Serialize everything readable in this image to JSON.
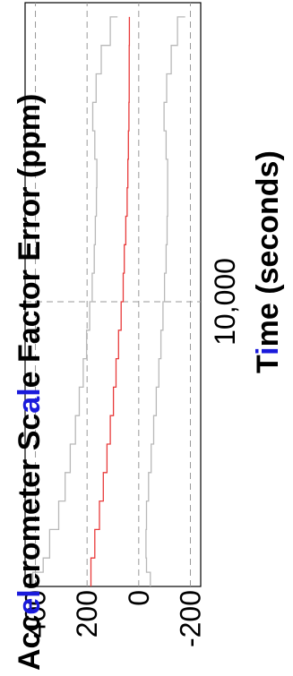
{
  "chart_data": {
    "type": "line",
    "title": "",
    "ylabel": {
      "segments": [
        {
          "text": "Acc",
          "highlight": false
        },
        {
          "text": "el",
          "highlight": true
        },
        {
          "text": "erometer Sc",
          "highlight": false
        },
        {
          "text": "al",
          "highlight": true
        },
        {
          "text": "e Factor Error (ppm)",
          "highlight": false
        }
      ]
    },
    "xlabel": {
      "segments": [
        {
          "text": "T",
          "highlight": false
        },
        {
          "text": "i",
          "highlight": true
        },
        {
          "text": "me (seconds)",
          "highlight": false
        }
      ]
    },
    "x_ticks": [
      {
        "value": 10000,
        "label": "10,000"
      }
    ],
    "y_ticks": [
      {
        "value": 400,
        "label": "400"
      },
      {
        "value": 200,
        "label": "200"
      },
      {
        "value": 0,
        "label": "0"
      },
      {
        "value": -200,
        "label": "-200"
      }
    ],
    "xlim": [
      0,
      20500
    ],
    "ylim": [
      -240,
      440
    ],
    "grid": true,
    "highlight_color": "#1a1adb",
    "series": [
      {
        "color": "#e83a3a",
        "x": [
          0,
          1000,
          2000,
          3000,
          4000,
          5000,
          6000,
          7000,
          8000,
          9000,
          10000,
          11000,
          12000,
          13000,
          14000,
          15000,
          16000,
          17000,
          18000,
          19000,
          20000
        ],
        "values": [
          185,
          170,
          152,
          137,
          123,
          110,
          98,
          88,
          78,
          68,
          60,
          56,
          50,
          45,
          42,
          40,
          38,
          37,
          37,
          36,
          36
        ]
      },
      {
        "color": "#b8b8b8",
        "x": [
          0,
          500,
          1000,
          2000,
          3000,
          4000,
          5000,
          6000,
          7000,
          8000,
          9000,
          10000,
          11000,
          12000,
          13000,
          14000,
          15000,
          16000,
          17000,
          18000,
          19000,
          20000
        ],
        "values": [
          410,
          370,
          345,
          310,
          285,
          265,
          245,
          230,
          215,
          202,
          190,
          180,
          172,
          168,
          164,
          162,
          170,
          178,
          165,
          145,
          110,
          82
        ]
      },
      {
        "color": "#b8b8b8",
        "x": [
          0,
          500,
          1000,
          2000,
          3000,
          4000,
          5000,
          6000,
          7000,
          8000,
          9000,
          10000,
          11000,
          12000,
          13000,
          14000,
          15000,
          16000,
          17000,
          18000,
          19000,
          20000
        ],
        "values": [
          -45,
          -30,
          -28,
          -30,
          -38,
          -48,
          -58,
          -68,
          -78,
          -86,
          -94,
          -100,
          -106,
          -110,
          -112,
          -112,
          -106,
          -98,
          -108,
          -126,
          -150,
          -180
        ]
      }
    ]
  }
}
